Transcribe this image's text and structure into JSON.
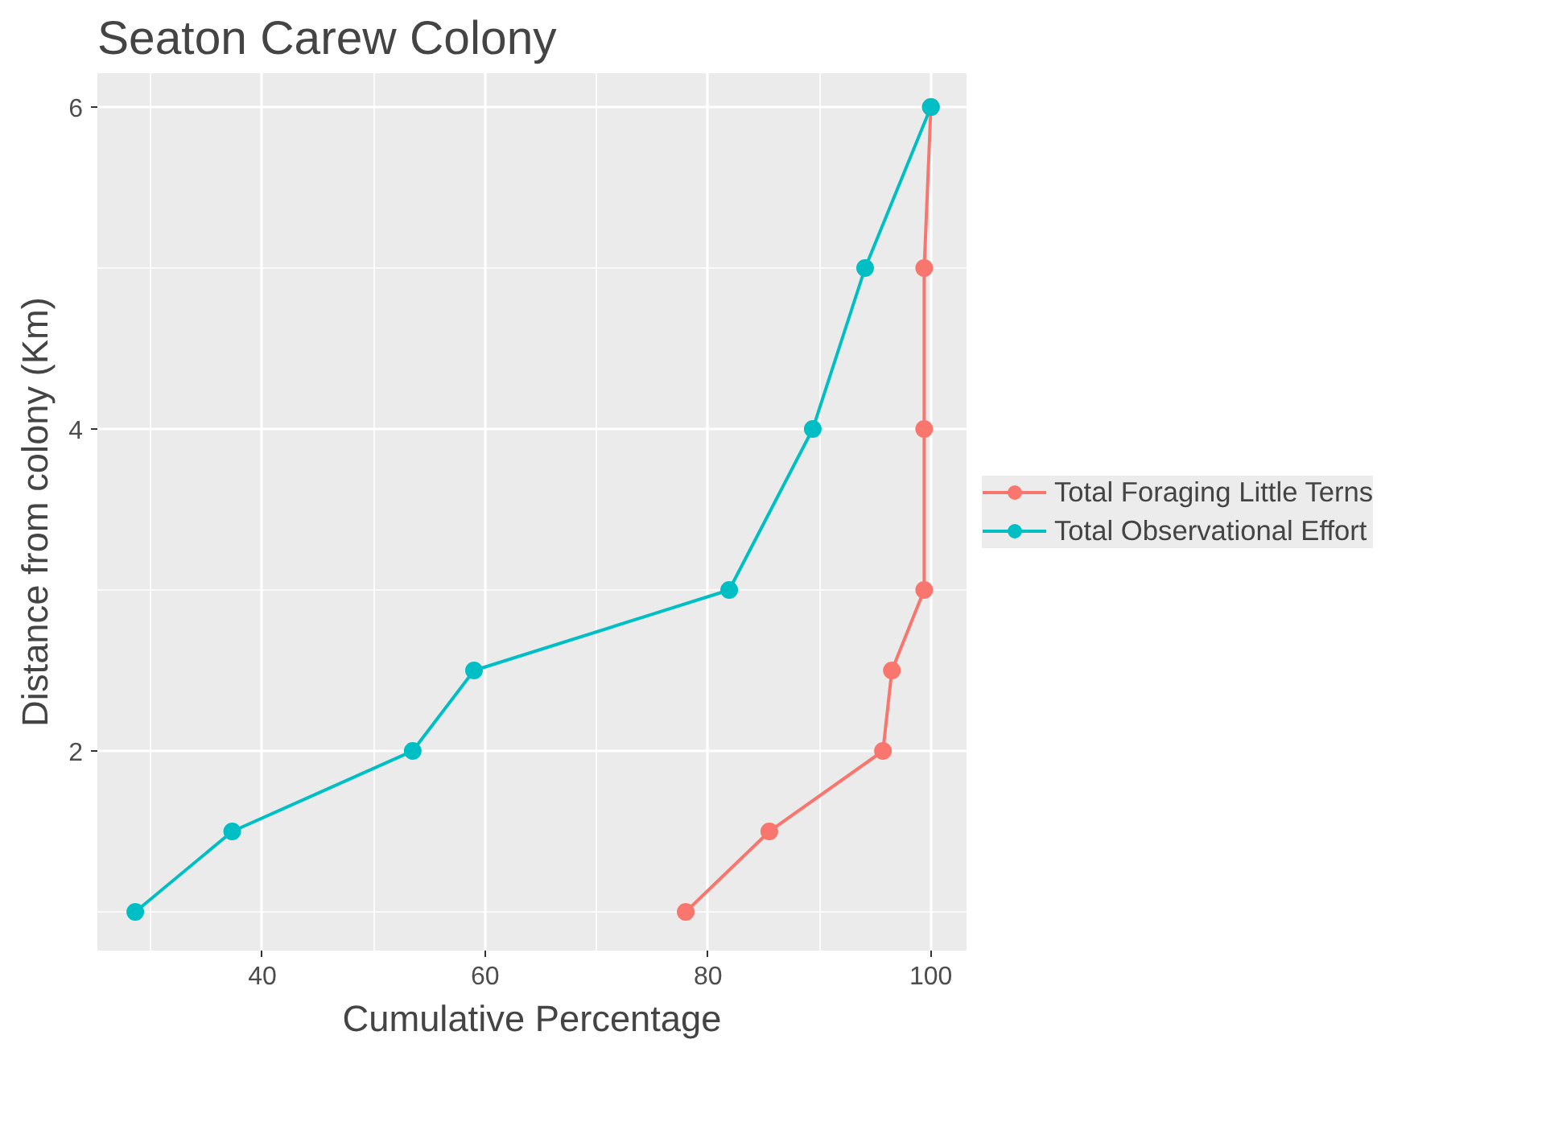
{
  "chart_data": {
    "type": "line",
    "title": "Seaton Carew Colony",
    "xlabel": "Cumulative Percentage",
    "ylabel": "Distance from colony (Km)",
    "series": [
      {
        "name": "Total Foraging Little Terns",
        "color": "#f8766d",
        "x": [
          78.0,
          85.5,
          95.7,
          96.5,
          99.4,
          99.4,
          99.4,
          100
        ],
        "values": [
          1,
          1.5,
          2,
          2.5,
          3,
          4,
          5,
          6
        ]
      },
      {
        "name": "Total Observational Effort",
        "color": "#00bfc4",
        "x": [
          28.6,
          37.3,
          53.5,
          59.0,
          81.9,
          89.4,
          94.1,
          100
        ],
        "values": [
          1,
          1.5,
          2,
          2.5,
          3,
          4,
          5,
          6
        ]
      }
    ],
    "xlim": [
      25.2,
      103.2
    ],
    "ylim": [
      0.76,
      6.21
    ],
    "xticks": [
      40,
      60,
      80,
      100
    ],
    "yticks": [
      2,
      4,
      6
    ],
    "grid": true,
    "legend": "right",
    "marker": "circle",
    "line_style": "solid"
  }
}
